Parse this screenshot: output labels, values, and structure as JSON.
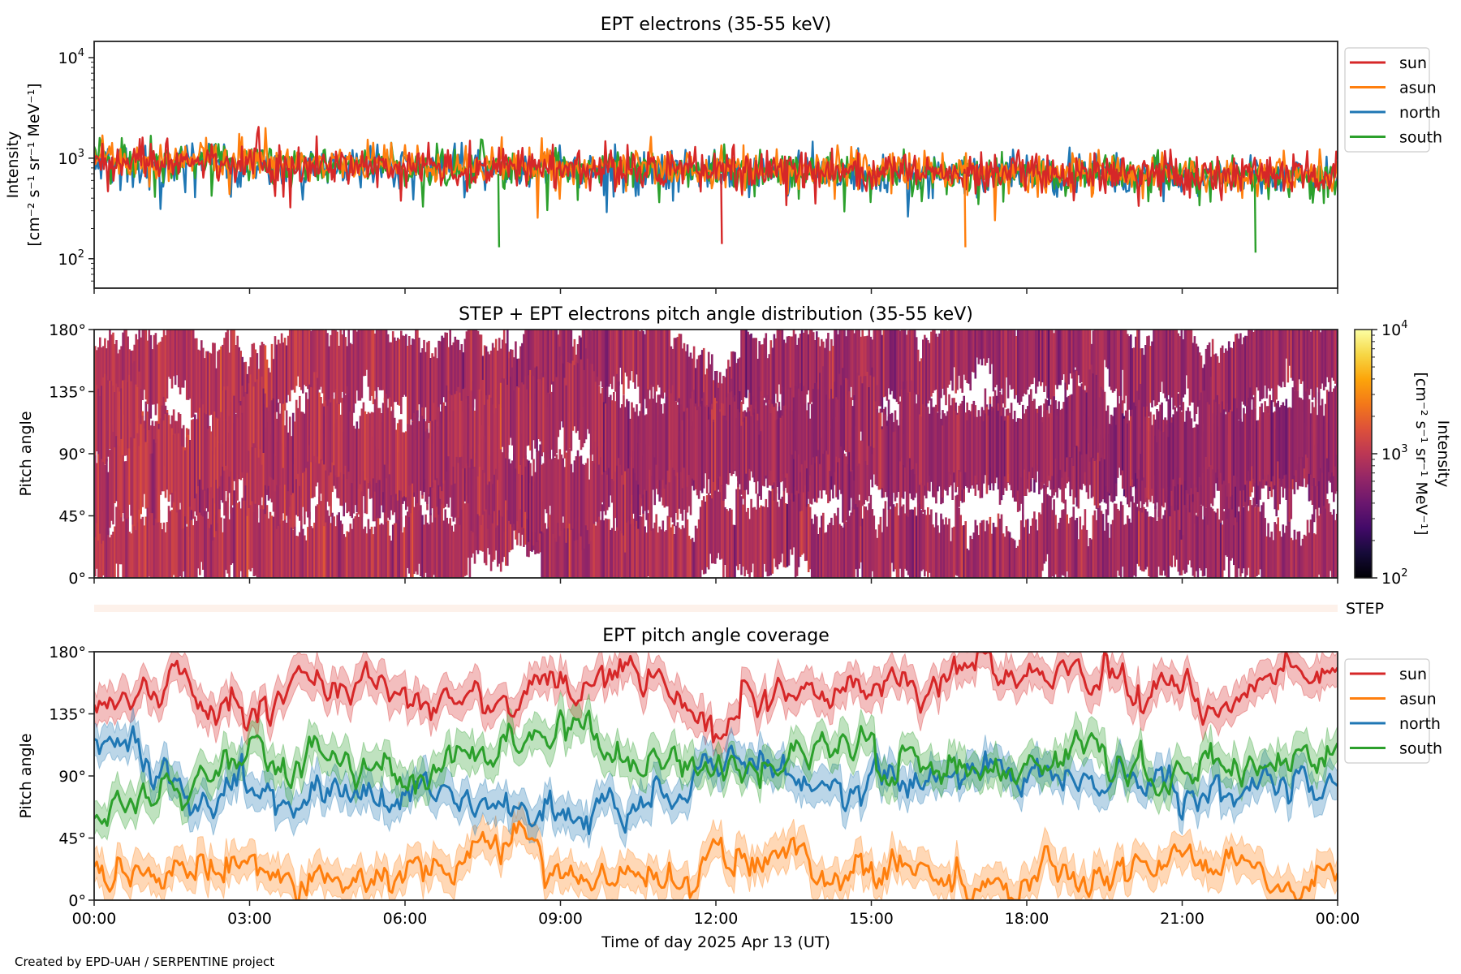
{
  "chart_data": [
    {
      "type": "line",
      "title": "EPT electrons (35-55 keV)",
      "ylabel": [
        "Intensity",
        "[cm⁻² s⁻¹ sr⁻¹ MeV⁻¹]"
      ],
      "yscale": "log",
      "ylim": [
        51,
        14500
      ],
      "yticks": [
        {
          "base": "10",
          "exp": "2",
          "value": 100
        },
        {
          "base": "10",
          "exp": "3",
          "value": 1000
        },
        {
          "base": "10",
          "exp": "4",
          "value": 10000
        }
      ],
      "xlim_hours": [
        0,
        24
      ],
      "legend": {
        "placement": "outside-right",
        "entries": [
          "sun",
          "asun",
          "north",
          "south"
        ]
      },
      "series": [
        {
          "name": "sun",
          "color": "#d62728",
          "baseline": [
            950,
            900,
            850,
            820,
            780,
            760,
            740,
            720,
            700,
            700,
            690
          ]
        },
        {
          "name": "asun",
          "color": "#ff7f0e",
          "baseline": [
            1000,
            950,
            900,
            860,
            820,
            790,
            760,
            740,
            720,
            710,
            700
          ]
        },
        {
          "name": "north",
          "color": "#1f77b4",
          "baseline": [
            900,
            870,
            830,
            800,
            770,
            740,
            720,
            700,
            680,
            670,
            660
          ]
        },
        {
          "name": "south",
          "color": "#2ca02c",
          "baseline": [
            950,
            920,
            880,
            840,
            800,
            770,
            740,
            720,
            700,
            690,
            680
          ]
        }
      ],
      "notable_minima": [
        {
          "hour": 7.8,
          "value": 130
        },
        {
          "hour": 12.1,
          "value": 140
        },
        {
          "hour": 16.8,
          "value": 130
        },
        {
          "hour": 22.4,
          "value": 115
        }
      ]
    },
    {
      "type": "heatmap",
      "title": "STEP + EPT electrons pitch angle distribution (35-55 keV)",
      "ylabel": "Pitch angle",
      "ylim": [
        0,
        180
      ],
      "yticks": [
        "0°",
        "45°",
        "90°",
        "135°",
        "180°"
      ],
      "colorbar": {
        "label": [
          "Intensity",
          "[cm⁻² s⁻¹ sr⁻¹ MeV⁻¹]"
        ],
        "scale": "log",
        "range": [
          100,
          10000
        ],
        "colormap": "inferno",
        "ticks": [
          {
            "base": "10",
            "exp": "2"
          },
          {
            "base": "10",
            "exp": "3"
          },
          {
            "base": "10",
            "exp": "4"
          }
        ]
      },
      "step_label": "STEP"
    },
    {
      "type": "line",
      "title": "EPT pitch angle coverage",
      "ylabel": "Pitch angle",
      "xlabel": "Time of day 2025 Apr 13 (UT)",
      "ylim": [
        0,
        180
      ],
      "yticks": [
        "0°",
        "45°",
        "90°",
        "135°",
        "180°"
      ],
      "xticks": [
        "00:00",
        "03:00",
        "06:00",
        "09:00",
        "12:00",
        "15:00",
        "18:00",
        "21:00",
        "00:00"
      ],
      "legend": {
        "placement": "outside-right",
        "entries": [
          "sun",
          "asun",
          "north",
          "south"
        ]
      },
      "x_hours": [
        0,
        1,
        2,
        3,
        4,
        5,
        6,
        7,
        8,
        9,
        10,
        11,
        12,
        13,
        14,
        15,
        16,
        17,
        18,
        19,
        20,
        21,
        22,
        23,
        24
      ],
      "series": [
        {
          "name": "sun",
          "color": "#d62728",
          "values": [
            150,
            155,
            150,
            120,
            160,
            160,
            150,
            145,
            150,
            150,
            165,
            170,
            125,
            150,
            150,
            155,
            165,
            170,
            165,
            165,
            155,
            150,
            145,
            165,
            170
          ]
        },
        {
          "name": "asun",
          "color": "#ff7f0e",
          "values": [
            25,
            20,
            20,
            30,
            15,
            25,
            25,
            30,
            40,
            30,
            25,
            15,
            20,
            35,
            30,
            20,
            15,
            10,
            10,
            15,
            20,
            25,
            25,
            15,
            10
          ]
        },
        {
          "name": "north",
          "color": "#1f77b4",
          "values": [
            110,
            95,
            80,
            75,
            80,
            85,
            80,
            75,
            70,
            60,
            70,
            85,
            90,
            95,
            85,
            75,
            85,
            90,
            85,
            85,
            90,
            80,
            75,
            85,
            90
          ]
        },
        {
          "name": "south",
          "color": "#2ca02c",
          "values": [
            60,
            75,
            90,
            110,
            105,
            100,
            95,
            100,
            105,
            125,
            115,
            110,
            95,
            100,
            110,
            105,
            100,
            95,
            100,
            105,
            100,
            95,
            95,
            100,
            90
          ]
        }
      ],
      "band_halfwidth_deg": 12
    }
  ],
  "footer": {
    "credit": "Created by EPD-UAH / SERPENTINE project"
  }
}
